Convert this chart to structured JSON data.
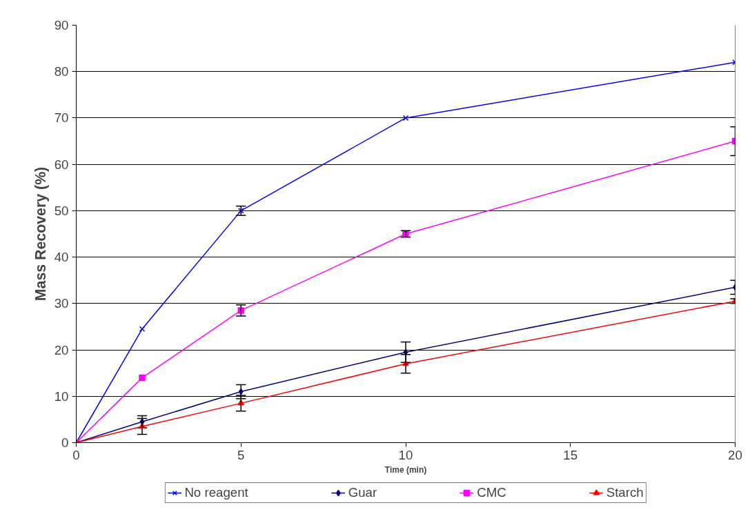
{
  "chart_data": {
    "type": "line",
    "xlabel": "Time (min)",
    "ylabel": "Mass Recovery (%)",
    "x": [
      0,
      2,
      5,
      10,
      20
    ],
    "series": [
      {
        "name": "No reagent",
        "color": "#0000ff",
        "marker": "cross",
        "values": [
          0,
          24.5,
          50,
          70,
          82
        ],
        "errors": [
          null,
          null,
          1,
          null,
          null
        ]
      },
      {
        "name": "Guar",
        "color": "#000080",
        "marker": "diamond",
        "values": [
          0,
          4.5,
          11,
          19.5,
          33.5
        ],
        "errors": [
          null,
          1.3,
          1.5,
          2.2,
          1.5
        ]
      },
      {
        "name": "CMC",
        "color": "#ff00ff",
        "marker": "square",
        "values": [
          0,
          14,
          28.5,
          45,
          65
        ],
        "errors": [
          null,
          null,
          1.2,
          0.7,
          3.1
        ]
      },
      {
        "name": "Starch",
        "color": "#ff0000",
        "marker": "triangle",
        "values": [
          0,
          3.5,
          8.5,
          17,
          30.5
        ],
        "errors": [
          null,
          1.7,
          1.7,
          2,
          0.5
        ]
      }
    ],
    "xlim": [
      0,
      20
    ],
    "xticks": [
      0,
      5,
      10,
      15,
      20
    ],
    "ylim": [
      0,
      90
    ],
    "yticks": [
      0,
      10,
      20,
      30,
      40,
      50,
      60,
      70,
      80,
      90
    ],
    "grid": "y",
    "legend": "bottom"
  }
}
